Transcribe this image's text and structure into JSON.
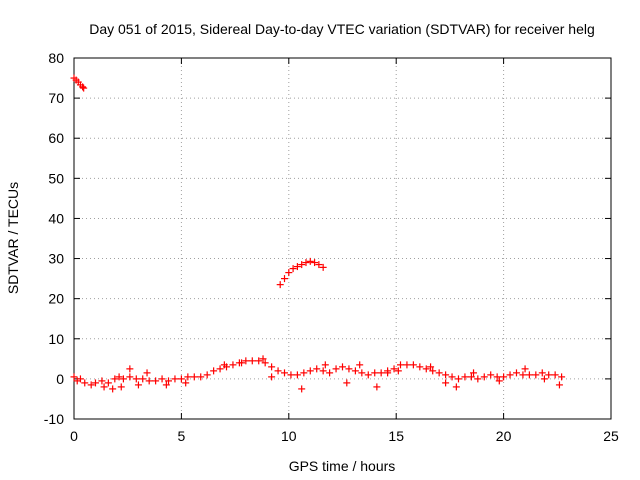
{
  "chart_data": {
    "type": "scatter",
    "title": "Day 051 of 2015, Sidereal Day-to-day VTEC variation (SDTVAR) for receiver helg",
    "xlabel": "GPS time / hours",
    "ylabel": "SDTVAR / TECUs",
    "xlim": [
      0,
      25
    ],
    "ylim": [
      -10,
      80
    ],
    "xticks": [
      0,
      5,
      10,
      15,
      20,
      25
    ],
    "yticks": [
      -10,
      0,
      10,
      20,
      30,
      40,
      50,
      60,
      70,
      80
    ],
    "grid": true,
    "marker": "plus",
    "color": "#ff0000",
    "series": [
      {
        "name": "SDTVAR",
        "x": [
          0.0,
          0.1,
          0.2,
          0.3,
          0.4,
          0.45,
          0.0,
          0.15,
          0.3,
          0.5,
          0.8,
          1.0,
          1.3,
          1.6,
          1.9,
          2.1,
          2.3,
          2.6,
          2.9,
          3.2,
          3.5,
          3.8,
          4.1,
          4.4,
          4.7,
          5.0,
          5.3,
          5.6,
          5.9,
          6.2,
          6.5,
          6.8,
          7.1,
          7.4,
          7.7,
          8.0,
          8.3,
          8.6,
          8.9,
          9.2,
          9.5,
          9.8,
          10.1,
          10.4,
          10.7,
          11.0,
          11.3,
          11.6,
          11.9,
          12.2,
          12.5,
          12.8,
          13.1,
          13.4,
          13.7,
          14.0,
          14.3,
          14.6,
          14.9,
          15.2,
          15.5,
          15.8,
          16.1,
          16.4,
          16.7,
          17.0,
          17.3,
          17.6,
          17.9,
          18.2,
          18.5,
          18.8,
          19.1,
          19.4,
          19.7,
          20.0,
          20.3,
          20.6,
          20.9,
          21.2,
          21.5,
          21.8,
          22.1,
          22.4,
          22.7,
          9.6,
          9.8,
          10.0,
          10.2,
          10.4,
          10.6,
          10.8,
          11.0,
          11.2,
          11.4,
          11.6,
          1.4,
          1.8,
          2.2,
          2.6,
          3.0,
          3.4,
          4.3,
          5.2,
          7.0,
          7.8,
          8.8,
          9.2,
          10.6,
          11.7,
          12.7,
          13.3,
          14.1,
          14.6,
          15.1,
          16.6,
          17.3,
          17.8,
          18.6,
          19.8,
          21.0,
          21.9,
          22.6
        ],
        "y": [
          75.0,
          74.5,
          74.0,
          73.3,
          72.8,
          72.5,
          0.5,
          -0.5,
          0.0,
          -1.0,
          -1.5,
          -1.0,
          -0.5,
          -1.0,
          0.0,
          0.5,
          0.0,
          0.5,
          0.0,
          0.0,
          -0.5,
          -0.5,
          0.0,
          -0.5,
          0.0,
          0.0,
          0.5,
          0.5,
          0.5,
          1.0,
          2.0,
          2.5,
          3.0,
          3.5,
          4.0,
          4.5,
          4.5,
          4.5,
          4.0,
          3.0,
          2.0,
          1.5,
          1.0,
          1.0,
          1.5,
          2.0,
          2.5,
          2.0,
          1.5,
          2.5,
          3.0,
          2.5,
          2.0,
          1.5,
          1.0,
          1.5,
          1.5,
          2.0,
          2.5,
          3.5,
          3.5,
          3.5,
          3.0,
          2.5,
          2.0,
          1.5,
          1.0,
          0.5,
          0.0,
          0.5,
          0.5,
          0.0,
          0.5,
          1.0,
          0.5,
          0.5,
          1.0,
          1.5,
          1.0,
          1.0,
          1.0,
          1.5,
          1.0,
          1.0,
          0.5,
          23.5,
          25.0,
          26.5,
          27.5,
          28.0,
          28.5,
          29.0,
          29.3,
          29.0,
          28.5,
          27.8,
          -2.0,
          -2.5,
          -2.0,
          2.5,
          -1.5,
          1.5,
          -1.5,
          -1.0,
          3.5,
          4.0,
          5.0,
          0.5,
          -2.5,
          3.5,
          -1.0,
          3.5,
          -2.0,
          1.5,
          2.0,
          3.0,
          -1.0,
          -2.0,
          1.5,
          -0.5,
          2.5,
          0.0,
          -1.5
        ]
      }
    ]
  }
}
